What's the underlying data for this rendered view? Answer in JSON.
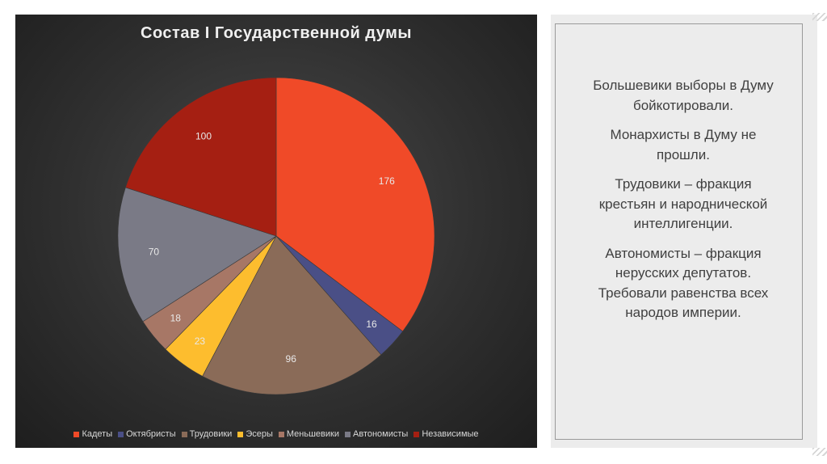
{
  "chart_data": {
    "type": "pie",
    "title": "Состав I Государственной думы",
    "categories": [
      "Кадеты",
      "Октябристы",
      "Трудовики",
      "Эсеры",
      "Меньшевики",
      "Автономисты",
      "Независимые"
    ],
    "values": [
      176,
      16,
      96,
      23,
      18,
      70,
      100
    ],
    "colors": [
      "#f04a28",
      "#4a4f86",
      "#8a6b58",
      "#fdbd2e",
      "#a77766",
      "#7a7a86",
      "#a51f12"
    ],
    "legend_position": "bottom"
  },
  "side_text": {
    "p1": "Большевики выборы в Думу бойкотировали.",
    "p2": "Монархисты в Думу не прошли.",
    "p3": "Трудовики – фракция крестьян и народнической интеллигенции.",
    "p4": "Автономисты – фракция нерусских депутатов. Требовали равенства всех народов империи."
  }
}
